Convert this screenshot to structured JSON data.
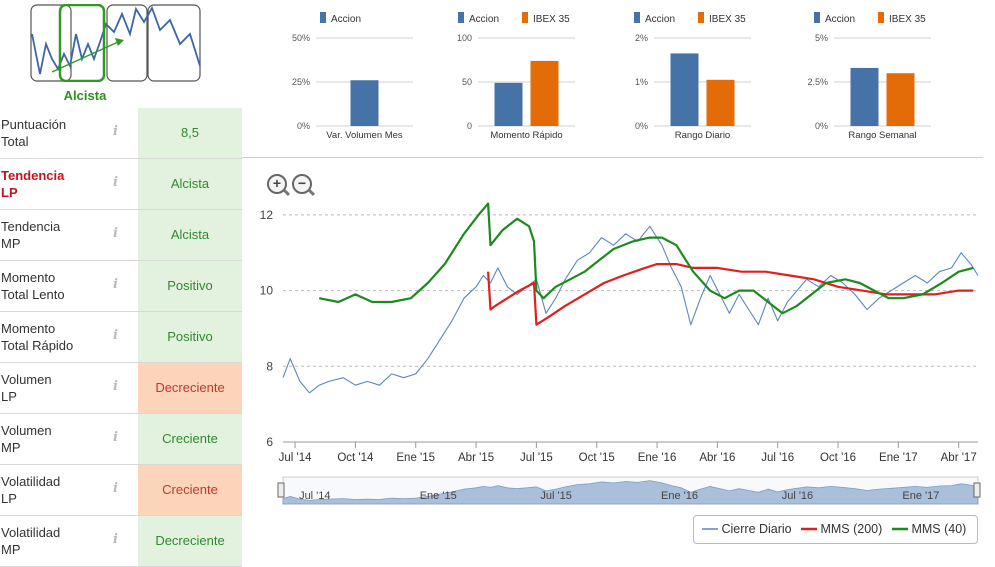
{
  "trend_widget": {
    "label": "Alcista"
  },
  "indicators": [
    {
      "label_l1": "Puntuación",
      "label_l2": "Total",
      "value": "8,5",
      "status": "green",
      "highlight": false
    },
    {
      "label_l1": "Tendencia",
      "label_l2": "LP",
      "value": "Alcista",
      "status": "green",
      "highlight": true
    },
    {
      "label_l1": "Tendencia",
      "label_l2": "MP",
      "value": "Alcista",
      "status": "green",
      "highlight": false
    },
    {
      "label_l1": "Momento",
      "label_l2": "Total Lento",
      "value": "Positivo",
      "status": "green",
      "highlight": false
    },
    {
      "label_l1": "Momento",
      "label_l2": "Total Rápido",
      "value": "Positivo",
      "status": "green",
      "highlight": false
    },
    {
      "label_l1": "Volumen",
      "label_l2": "LP",
      "value": "Decreciente",
      "status": "orange",
      "highlight": false
    },
    {
      "label_l1": "Volumen",
      "label_l2": "MP",
      "value": "Creciente",
      "status": "green",
      "highlight": false
    },
    {
      "label_l1": "Volatilidad",
      "label_l2": "LP",
      "value": "Creciente",
      "status": "orange",
      "highlight": false
    },
    {
      "label_l1": "Volatilidad",
      "label_l2": "MP",
      "value": "Decreciente",
      "status": "green",
      "highlight": false
    }
  ],
  "info_icon": "i",
  "colors": {
    "accion": "#4572a7",
    "ibex": "#e36c09",
    "cierre": "#5b86c0",
    "mms200": "#e02020",
    "mms40": "#1d8a1d",
    "navigator": "#aabfd9"
  },
  "chart_data": [
    {
      "type": "bar",
      "title": "Var. Volumen Mes",
      "legend": [
        "Accion"
      ],
      "yticks": [
        "50%",
        "25%",
        "0%"
      ],
      "ylim": [
        0,
        50
      ],
      "series": [
        {
          "name": "Accion",
          "values": [
            26
          ]
        }
      ]
    },
    {
      "type": "bar",
      "title": "Momento Rápido",
      "legend": [
        "Accion",
        "IBEX 35"
      ],
      "yticks": [
        "100",
        "50",
        "0"
      ],
      "ylim": [
        0,
        100
      ],
      "series": [
        {
          "name": "Accion",
          "values": [
            49
          ]
        },
        {
          "name": "IBEX 35",
          "values": [
            74
          ]
        }
      ]
    },
    {
      "type": "bar",
      "title": "Rango Diario",
      "legend": [
        "Accion",
        "IBEX 35"
      ],
      "yticks": [
        "2%",
        "1%",
        "0%"
      ],
      "ylim": [
        0,
        2
      ],
      "series": [
        {
          "name": "Accion",
          "values": [
            1.65
          ]
        },
        {
          "name": "IBEX 35",
          "values": [
            1.05
          ]
        }
      ]
    },
    {
      "type": "bar",
      "title": "Rango Semanal",
      "legend": [
        "Accion",
        "IBEX 35"
      ],
      "yticks": [
        "5%",
        "2.5%",
        "0%"
      ],
      "ylim": [
        0,
        5
      ],
      "series": [
        {
          "name": "Accion",
          "values": [
            3.3
          ]
        },
        {
          "name": "IBEX 35",
          "values": [
            3.0
          ]
        }
      ]
    },
    {
      "type": "line",
      "title": "",
      "ylim": [
        6,
        12.5
      ],
      "yticks": [
        6,
        8,
        10,
        12
      ],
      "xlim": [
        2014.45,
        2017.33
      ],
      "xticks": [
        {
          "label": "Jul '14",
          "x": 2014.5
        },
        {
          "label": "Oct '14",
          "x": 2014.75
        },
        {
          "label": "Ene '15",
          "x": 2015.0
        },
        {
          "label": "Abr '15",
          "x": 2015.25
        },
        {
          "label": "Jul '15",
          "x": 2015.5
        },
        {
          "label": "Oct '15",
          "x": 2015.75
        },
        {
          "label": "Ene '16",
          "x": 2016.0
        },
        {
          "label": "Abr '16",
          "x": 2016.25
        },
        {
          "label": "Jul '16",
          "x": 2016.5
        },
        {
          "label": "Oct '16",
          "x": 2016.75
        },
        {
          "label": "Ene '17",
          "x": 2017.0
        },
        {
          "label": "Abr '17",
          "x": 2017.25
        }
      ],
      "navigator_labels": [
        "Jul '14",
        "Ene '15",
        "Jul '15",
        "Ene '16",
        "Jul '16",
        "Ene '17"
      ],
      "legend": [
        "Cierre Diario",
        "MMS (200)",
        "MMS (40)"
      ],
      "series": [
        {
          "name": "Cierre Diario",
          "x": [
            2014.45,
            2014.48,
            2014.52,
            2014.56,
            2014.6,
            2014.64,
            2014.7,
            2014.75,
            2014.8,
            2014.85,
            2014.9,
            2014.95,
            2015.0,
            2015.05,
            2015.1,
            2015.15,
            2015.2,
            2015.25,
            2015.28,
            2015.31,
            2015.34,
            2015.38,
            2015.42,
            2015.46,
            2015.5,
            2015.54,
            2015.58,
            2015.62,
            2015.67,
            2015.72,
            2015.77,
            2015.82,
            2015.87,
            2015.92,
            2015.97,
            2016.02,
            2016.06,
            2016.1,
            2016.14,
            2016.18,
            2016.22,
            2016.26,
            2016.3,
            2016.34,
            2016.38,
            2016.42,
            2016.46,
            2016.5,
            2016.54,
            2016.58,
            2016.62,
            2016.67,
            2016.72,
            2016.77,
            2016.82,
            2016.87,
            2016.92,
            2016.97,
            2017.02,
            2017.07,
            2017.12,
            2017.17,
            2017.22,
            2017.26,
            2017.3,
            2017.33
          ],
          "y": [
            7.7,
            8.2,
            7.6,
            7.3,
            7.5,
            7.6,
            7.7,
            7.5,
            7.6,
            7.5,
            7.8,
            7.7,
            7.8,
            8.2,
            8.7,
            9.2,
            9.8,
            10.1,
            10.4,
            10.2,
            10.6,
            10.1,
            9.9,
            10.1,
            10.3,
            9.4,
            9.8,
            10.3,
            10.8,
            11.0,
            11.4,
            11.2,
            11.5,
            11.3,
            11.7,
            11.2,
            10.6,
            10.1,
            9.1,
            9.8,
            10.4,
            9.9,
            9.4,
            9.9,
            9.5,
            9.1,
            9.8,
            9.2,
            9.7,
            10.0,
            10.3,
            10.1,
            10.4,
            10.2,
            9.9,
            9.5,
            9.8,
            10.0,
            10.2,
            10.4,
            10.2,
            10.5,
            10.6,
            11.0,
            10.7,
            10.4
          ]
        },
        {
          "name": "MMS (200)",
          "x": [
            2015.3,
            2015.31,
            2015.33,
            2015.38,
            2015.43,
            2015.49,
            2015.5,
            2015.55,
            2015.62,
            2015.7,
            2015.78,
            2015.86,
            2015.95,
            2016.0,
            2016.08,
            2016.15,
            2016.25,
            2016.35,
            2016.45,
            2016.55,
            2016.65,
            2016.75,
            2016.85,
            2016.95,
            2017.05,
            2017.15,
            2017.25,
            2017.31
          ],
          "y": [
            10.5,
            9.5,
            9.6,
            9.8,
            10.0,
            10.2,
            9.1,
            9.3,
            9.6,
            9.9,
            10.2,
            10.4,
            10.6,
            10.7,
            10.7,
            10.6,
            10.6,
            10.5,
            10.5,
            10.4,
            10.3,
            10.1,
            10.0,
            9.9,
            9.9,
            9.9,
            10.0,
            10.0
          ]
        },
        {
          "name": "MMS (40)",
          "x": [
            2014.6,
            2014.68,
            2014.75,
            2014.82,
            2014.9,
            2014.98,
            2015.05,
            2015.12,
            2015.2,
            2015.26,
            2015.3,
            2015.31,
            2015.36,
            2015.42,
            2015.47,
            2015.49,
            2015.5,
            2015.53,
            2015.58,
            2015.64,
            2015.7,
            2015.76,
            2015.82,
            2015.9,
            2015.97,
            2016.02,
            2016.08,
            2016.15,
            2016.22,
            2016.28,
            2016.34,
            2016.4,
            2016.46,
            2016.52,
            2016.58,
            2016.64,
            2016.7,
            2016.78,
            2016.84,
            2016.9,
            2016.96,
            2017.02,
            2017.1,
            2017.18,
            2017.25,
            2017.31
          ],
          "y": [
            9.8,
            9.7,
            9.9,
            9.7,
            9.7,
            9.8,
            10.2,
            10.7,
            11.5,
            12.0,
            12.3,
            11.2,
            11.6,
            11.9,
            11.7,
            11.3,
            10.0,
            9.8,
            10.1,
            10.3,
            10.5,
            10.8,
            11.1,
            11.3,
            11.4,
            11.4,
            11.2,
            10.5,
            10.0,
            9.8,
            10.0,
            10.0,
            9.7,
            9.4,
            9.6,
            9.9,
            10.2,
            10.3,
            10.2,
            10.0,
            9.8,
            9.8,
            9.9,
            10.2,
            10.5,
            10.6
          ]
        }
      ]
    }
  ]
}
